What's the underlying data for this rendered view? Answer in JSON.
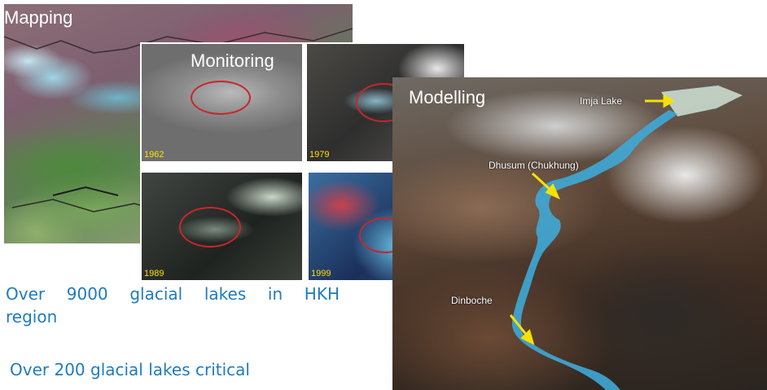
{
  "panels": {
    "mapping": {
      "label": "Mapping"
    },
    "monitoring": {
      "label": "Monitoring",
      "images": [
        {
          "year": "1962"
        },
        {
          "year": "1979"
        },
        {
          "year": "1989"
        },
        {
          "year": "1999"
        }
      ]
    },
    "modelling": {
      "label": "Modelling",
      "places": {
        "imja": "Imja Lake",
        "dhusum": "Dhusum (Chukhung)",
        "dinboche": "Dinboche"
      }
    }
  },
  "stats": {
    "lakes_total": "Over 9000 glacial lakes in HKH region",
    "lakes_critical": "Over 200 glacial lakes critical"
  },
  "colors": {
    "text_accent": "#1f7bbf",
    "lake_water": "#3fa8d6",
    "arrow": "#f5e200",
    "circle": "#c8262c",
    "year_label": "#ffe000"
  }
}
